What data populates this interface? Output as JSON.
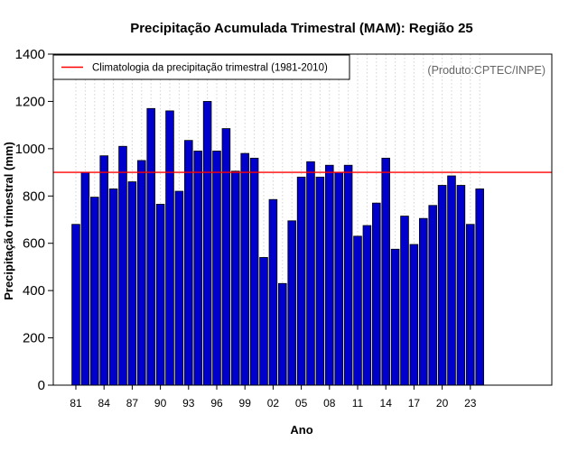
{
  "chart_data": {
    "type": "bar",
    "title": "Precipitação Acumulada Trimestral (MAM): Região 25",
    "xlabel": "Ano",
    "ylabel": "Precipitação trimestral (mm)",
    "ylim": [
      0,
      1400
    ],
    "yticks": [
      0,
      200,
      400,
      600,
      800,
      1000,
      1200,
      1400
    ],
    "categories": [
      "1981",
      "1982",
      "1983",
      "1984",
      "1985",
      "1986",
      "1987",
      "1988",
      "1989",
      "1990",
      "1991",
      "1992",
      "1993",
      "1994",
      "1995",
      "1996",
      "1997",
      "1998",
      "1999",
      "2000",
      "2001",
      "2002",
      "2003",
      "2004",
      "2005",
      "2006",
      "2007",
      "2008",
      "2009",
      "2010",
      "2011",
      "2012",
      "2013",
      "2014",
      "2015",
      "2016",
      "2017",
      "2018",
      "2019",
      "2020",
      "2021",
      "2022",
      "2023",
      "2024"
    ],
    "xtick_labels": [
      "81",
      "84",
      "87",
      "90",
      "93",
      "96",
      "99",
      "02",
      "05",
      "08",
      "11",
      "14",
      "17",
      "20",
      "23"
    ],
    "xtick_every": 3,
    "values": [
      680,
      900,
      795,
      970,
      830,
      1010,
      860,
      950,
      1170,
      765,
      1160,
      820,
      1035,
      990,
      1200,
      990,
      1085,
      905,
      980,
      960,
      540,
      785,
      430,
      695,
      880,
      945,
      880,
      930,
      900,
      930,
      630,
      675,
      770,
      960,
      575,
      715,
      595,
      705,
      760,
      845,
      885,
      845,
      680,
      830
    ],
    "reference_line": {
      "value": 900,
      "label": "Climatologia da precipitação trimestral (1981-2010)"
    },
    "legend_position": "top-left",
    "grid": "vertical-dotted",
    "annotation": "(Produto:CPTEC/INPE)",
    "colors": {
      "bar": "#0000CD",
      "bar_edge": "#000000",
      "reference_line": "#FF0000",
      "grid": "#d3d3d3",
      "annotation": "#666666"
    }
  }
}
